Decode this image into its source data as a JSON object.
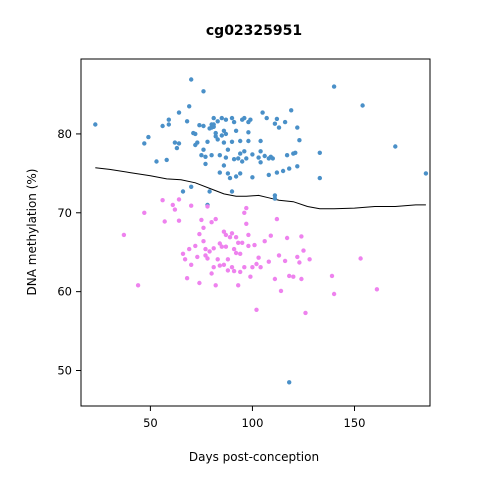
{
  "chart_data": {
    "type": "scatter",
    "title": "cg02325951",
    "xlabel": "Days post-conception",
    "ylabel": "DNA methylation (%)",
    "xlim": [
      16,
      187
    ],
    "ylim": [
      45.5,
      89.5
    ],
    "xticks": [
      50,
      100,
      150
    ],
    "yticks": [
      50,
      60,
      70,
      80
    ],
    "grid": false,
    "legend": "none",
    "colors": {
      "blue": "#4a90c8",
      "pink": "#ee82ee",
      "trend": "#000000"
    },
    "series": [
      {
        "color": "blue",
        "points": [
          [
            23,
            81.2
          ],
          [
            47,
            78.8
          ],
          [
            49,
            79.6
          ],
          [
            53,
            76.5
          ],
          [
            56,
            81.0
          ],
          [
            58,
            76.7
          ],
          [
            59,
            81.2
          ],
          [
            59,
            81.8
          ],
          [
            62,
            78.9
          ],
          [
            63,
            78.2
          ],
          [
            64,
            82.7
          ],
          [
            64,
            78.8
          ],
          [
            66,
            72.7
          ],
          [
            68,
            81.6
          ],
          [
            69,
            83.5
          ],
          [
            70,
            86.9
          ],
          [
            70,
            73.3
          ],
          [
            71,
            80.1
          ],
          [
            72,
            80.0
          ],
          [
            72,
            78.6
          ],
          [
            73,
            78.9
          ],
          [
            74,
            81.1
          ],
          [
            75,
            77.3
          ],
          [
            76,
            85.4
          ],
          [
            76,
            81.0
          ],
          [
            76,
            78.0
          ],
          [
            77,
            76.2
          ],
          [
            77,
            77.1
          ],
          [
            78,
            71.0
          ],
          [
            78,
            79.0
          ],
          [
            79,
            72.7
          ],
          [
            79,
            80.7
          ],
          [
            80,
            80.8
          ],
          [
            80,
            77.3
          ],
          [
            80,
            81.2
          ],
          [
            81,
            81.2
          ],
          [
            81,
            80.9
          ],
          [
            81,
            82.0
          ],
          [
            82,
            80.1
          ],
          [
            82,
            79.7
          ],
          [
            83,
            79.3
          ],
          [
            83,
            81.6
          ],
          [
            84,
            75.1
          ],
          [
            84,
            77.3
          ],
          [
            85,
            82.0
          ],
          [
            85,
            79.8
          ],
          [
            86,
            76.0
          ],
          [
            86,
            78.9
          ],
          [
            86,
            80.4
          ],
          [
            87,
            80.0
          ],
          [
            87,
            77.0
          ],
          [
            87,
            81.8
          ],
          [
            88,
            75.0
          ],
          [
            88,
            78.0
          ],
          [
            89,
            74.4
          ],
          [
            90,
            82.0
          ],
          [
            90,
            72.7
          ],
          [
            90,
            79.0
          ],
          [
            91,
            76.8
          ],
          [
            91,
            81.5
          ],
          [
            92,
            74.6
          ],
          [
            92,
            80.4
          ],
          [
            93,
            76.9
          ],
          [
            94,
            77.5
          ],
          [
            94,
            79.1
          ],
          [
            94,
            75.0
          ],
          [
            95,
            81.8
          ],
          [
            95,
            76.5
          ],
          [
            96,
            82.0
          ],
          [
            96,
            77.8
          ],
          [
            97,
            76.9
          ],
          [
            98,
            80.2
          ],
          [
            98,
            81.5
          ],
          [
            98,
            79.1
          ],
          [
            99,
            81.8
          ],
          [
            100,
            74.5
          ],
          [
            100,
            77.4
          ],
          [
            103,
            77.0
          ],
          [
            104,
            79.1
          ],
          [
            104,
            76.4
          ],
          [
            104,
            77.8
          ],
          [
            105,
            82.7
          ],
          [
            106,
            77.2
          ],
          [
            107,
            82.0
          ],
          [
            108,
            76.9
          ],
          [
            108,
            74.8
          ],
          [
            109,
            77.1
          ],
          [
            110,
            76.9
          ],
          [
            111,
            81.3
          ],
          [
            111,
            72.2
          ],
          [
            111,
            71.8
          ],
          [
            112,
            81.9
          ],
          [
            112,
            75.1
          ],
          [
            113,
            80.8
          ],
          [
            115,
            75.3
          ],
          [
            116,
            81.5
          ],
          [
            117,
            77.3
          ],
          [
            118,
            75.6
          ],
          [
            119,
            83.0
          ],
          [
            120,
            77.5
          ],
          [
            121,
            77.6
          ],
          [
            122,
            75.9
          ],
          [
            122,
            80.8
          ],
          [
            123,
            79.2
          ],
          [
            133,
            77.6
          ],
          [
            133,
            74.4
          ],
          [
            140,
            86.0
          ],
          [
            154,
            83.6
          ],
          [
            170,
            78.4
          ],
          [
            185,
            75.0
          ],
          [
            118,
            48.5
          ]
        ]
      },
      {
        "color": "pink",
        "points": [
          [
            37,
            67.2
          ],
          [
            44,
            60.8
          ],
          [
            47,
            70.0
          ],
          [
            56,
            71.6
          ],
          [
            57,
            68.9
          ],
          [
            61,
            71.0
          ],
          [
            62,
            70.4
          ],
          [
            64,
            71.7
          ],
          [
            64,
            69.0
          ],
          [
            66,
            64.8
          ],
          [
            67,
            64.1
          ],
          [
            68,
            61.7
          ],
          [
            69,
            65.4
          ],
          [
            70,
            70.9
          ],
          [
            70,
            63.4
          ],
          [
            72,
            65.8
          ],
          [
            73,
            64.4
          ],
          [
            74,
            67.3
          ],
          [
            74,
            61.1
          ],
          [
            75,
            69.1
          ],
          [
            76,
            68.1
          ],
          [
            76,
            66.4
          ],
          [
            77,
            65.4
          ],
          [
            77,
            64.6
          ],
          [
            78,
            70.8
          ],
          [
            78,
            64.2
          ],
          [
            79,
            65.1
          ],
          [
            80,
            68.8
          ],
          [
            80,
            62.3
          ],
          [
            81,
            65.5
          ],
          [
            81,
            63.1
          ],
          [
            82,
            60.8
          ],
          [
            82,
            69.2
          ],
          [
            83,
            64.1
          ],
          [
            84,
            66.1
          ],
          [
            84,
            63.3
          ],
          [
            85,
            65.7
          ],
          [
            86,
            67.6
          ],
          [
            86,
            63.4
          ],
          [
            87,
            67.2
          ],
          [
            87,
            65.7
          ],
          [
            88,
            64.1
          ],
          [
            88,
            62.7
          ],
          [
            89,
            66.9
          ],
          [
            90,
            67.4
          ],
          [
            90,
            63.1
          ],
          [
            91,
            65.4
          ],
          [
            91,
            62.6
          ],
          [
            92,
            66.9
          ],
          [
            92,
            64.9
          ],
          [
            93,
            66.2
          ],
          [
            93,
            60.8
          ],
          [
            94,
            64.8
          ],
          [
            94,
            62.5
          ],
          [
            95,
            66.2
          ],
          [
            96,
            70.0
          ],
          [
            96,
            63.1
          ],
          [
            97,
            68.6
          ],
          [
            97,
            70.6
          ],
          [
            98,
            67.2
          ],
          [
            98,
            65.8
          ],
          [
            99,
            61.9
          ],
          [
            100,
            63.1
          ],
          [
            101,
            65.9
          ],
          [
            102,
            63.5
          ],
          [
            102,
            57.7
          ],
          [
            103,
            64.3
          ],
          [
            104,
            63.1
          ],
          [
            106,
            66.4
          ],
          [
            108,
            63.8
          ],
          [
            109,
            67.1
          ],
          [
            111,
            61.6
          ],
          [
            112,
            69.2
          ],
          [
            113,
            64.6
          ],
          [
            114,
            60.1
          ],
          [
            116,
            63.9
          ],
          [
            117,
            66.8
          ],
          [
            118,
            62.0
          ],
          [
            120,
            61.9
          ],
          [
            122,
            64.4
          ],
          [
            123,
            63.7
          ],
          [
            124,
            67.0
          ],
          [
            124,
            61.6
          ],
          [
            125,
            65.2
          ],
          [
            126,
            57.3
          ],
          [
            128,
            64.1
          ],
          [
            139,
            62.0
          ],
          [
            140,
            59.7
          ],
          [
            153,
            64.2
          ],
          [
            161,
            60.3
          ]
        ]
      },
      {
        "color": "trend",
        "style": "line",
        "points": [
          [
            23,
            75.7
          ],
          [
            30,
            75.5
          ],
          [
            40,
            75.1
          ],
          [
            50,
            74.7
          ],
          [
            58,
            74.3
          ],
          [
            65,
            74.2
          ],
          [
            72,
            73.8
          ],
          [
            80,
            73.0
          ],
          [
            86,
            72.4
          ],
          [
            92,
            72.1
          ],
          [
            97,
            72.1
          ],
          [
            103,
            72.2
          ],
          [
            108,
            71.9
          ],
          [
            113,
            71.6
          ],
          [
            120,
            71.4
          ],
          [
            127,
            70.8
          ],
          [
            133,
            70.5
          ],
          [
            140,
            70.5
          ],
          [
            150,
            70.6
          ],
          [
            160,
            70.8
          ],
          [
            170,
            70.8
          ],
          [
            180,
            71.0
          ],
          [
            185,
            71.0
          ]
        ]
      }
    ]
  }
}
